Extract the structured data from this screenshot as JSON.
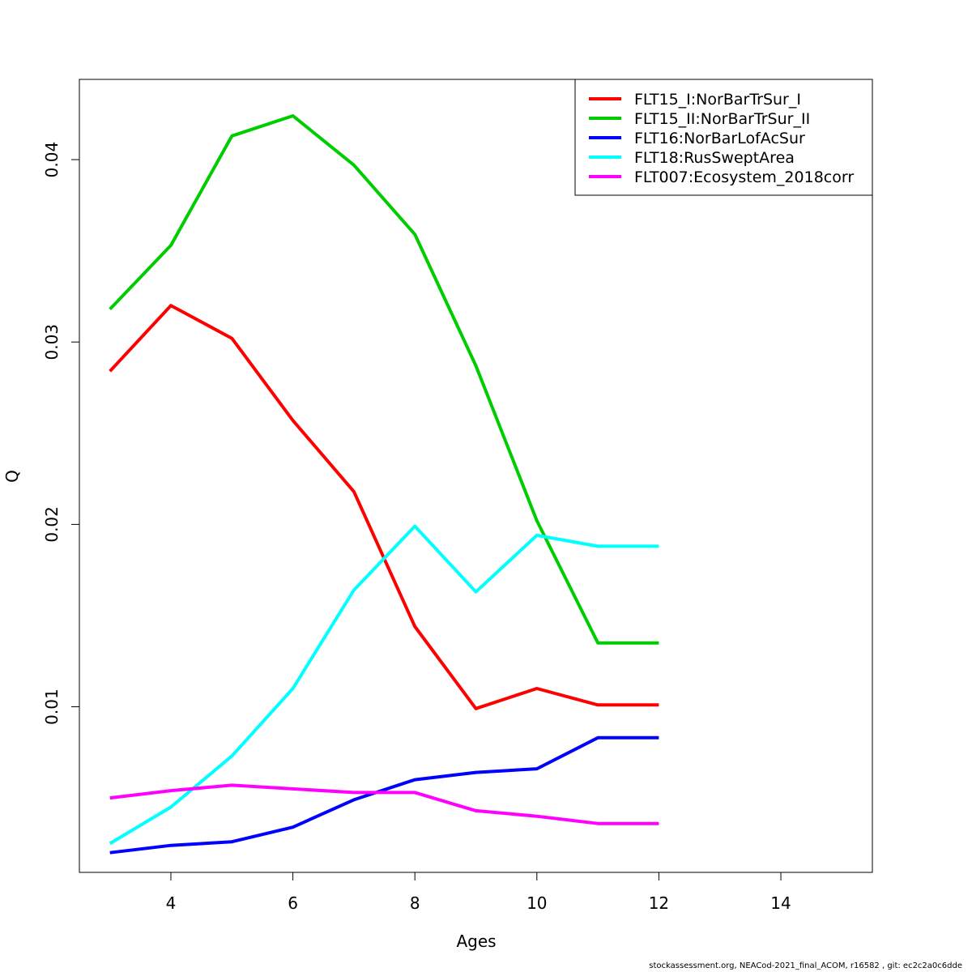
{
  "chart_data": {
    "type": "line",
    "xlabel": "Ages",
    "ylabel": "Q",
    "xlim": [
      2.5,
      15.5
    ],
    "ylim": [
      0.00092,
      0.0444
    ],
    "x_ticks": [
      4,
      6,
      8,
      10,
      12,
      14
    ],
    "y_ticks": [
      0.01,
      0.02,
      0.03,
      0.04
    ],
    "y_tick_labels": [
      "0.01",
      "0.02",
      "0.03",
      "0.04"
    ],
    "grid": false,
    "legend_position": "top-right",
    "x": [
      3,
      4,
      5,
      6,
      7,
      8,
      9,
      10,
      11,
      12
    ],
    "series": [
      {
        "name": "FLT15_I:NorBarTrSur_I",
        "color": "#ff0000",
        "values": [
          0.0284,
          0.032,
          0.0302,
          0.0257,
          0.0218,
          0.0144,
          0.0099,
          0.011,
          0.0101,
          0.0101
        ]
      },
      {
        "name": "FLT15_II:NorBarTrSur_II",
        "color": "#00cd00",
        "values": [
          0.0318,
          0.0353,
          0.0413,
          0.0424,
          0.0397,
          0.0359,
          0.0287,
          0.0202,
          0.0135,
          0.0135
        ]
      },
      {
        "name": "FLT16:NorBarLofAcSur",
        "color": "#0000ff",
        "values": [
          0.002,
          0.0024,
          0.0026,
          0.0034,
          0.0049,
          0.006,
          0.0064,
          0.0066,
          0.0083,
          0.0083
        ]
      },
      {
        "name": "FLT18:RusSweptArea",
        "color": "#00ffff",
        "values": [
          0.0025,
          0.0045,
          0.0073,
          0.011,
          0.0164,
          0.0199,
          0.0163,
          0.0194,
          0.0188,
          0.0188
        ]
      },
      {
        "name": "FLT007:Ecosystem_2018corr",
        "color": "#ff00ff",
        "values": [
          0.005,
          0.0054,
          0.0057,
          0.0055,
          0.0053,
          0.0053,
          0.0043,
          0.004,
          0.0036,
          0.0036
        ]
      }
    ]
  },
  "footer_text": "stockassessment.org, NEACod-2021_final_ACOM, r16582 , git: ec2c2a0c6dde"
}
